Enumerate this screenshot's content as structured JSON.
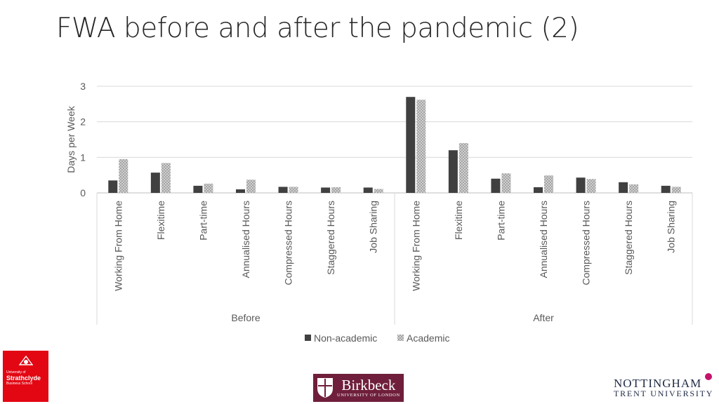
{
  "title": "FWA before and after the pandemic (2)",
  "chart_data": {
    "type": "bar",
    "ylabel": "Days per Week",
    "xlabel": "",
    "ylim": [
      0,
      3
    ],
    "yticks": [
      0,
      1,
      2,
      3
    ],
    "grid": true,
    "legend_position": "bottom",
    "groups": [
      "Before",
      "After"
    ],
    "categories": [
      "Working From Home",
      "Flexitime",
      "Part-time",
      "Annualised Hours",
      "Compressed Hours",
      "Staggered Hours",
      "Job Sharing"
    ],
    "series": [
      {
        "name": "Non-academic",
        "color": "#404040",
        "values": {
          "Before": [
            0.35,
            0.57,
            0.2,
            0.1,
            0.17,
            0.15,
            0.15
          ],
          "After": [
            2.7,
            1.2,
            0.4,
            0.16,
            0.43,
            0.3,
            0.2
          ]
        }
      },
      {
        "name": "Academic",
        "color": "#bfbfbf",
        "pattern": "cross-hatch",
        "values": {
          "Before": [
            0.95,
            0.84,
            0.26,
            0.37,
            0.17,
            0.16,
            0.11
          ],
          "After": [
            2.62,
            1.4,
            0.55,
            0.49,
            0.39,
            0.24,
            0.17
          ]
        }
      }
    ]
  },
  "logos": {
    "strathclyde": {
      "line1": "University of",
      "line2": "Strathclyde",
      "line3": "Business School"
    },
    "birkbeck": {
      "name": "Birkbeck",
      "subtitle": "UNIVERSITY OF LONDON"
    },
    "ntu": {
      "line1": "NOTTINGHAM",
      "line2": "TRENT UNIVERSITY"
    }
  }
}
